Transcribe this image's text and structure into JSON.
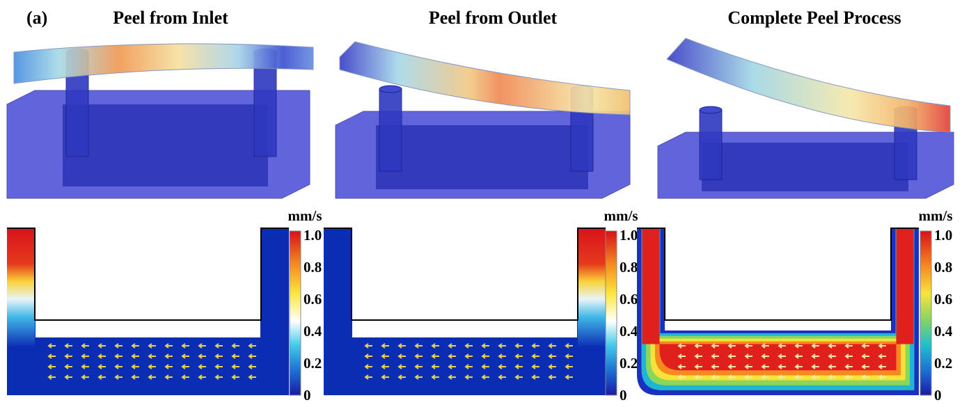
{
  "label": "(a)",
  "panels": [
    {
      "title": "Peel from Inlet",
      "colorbar": {
        "unit": "mm/s",
        "ticks": [
          "1.0",
          "0.8",
          "0.6",
          "0.4",
          "0.2",
          "0"
        ]
      }
    },
    {
      "title": "Peel from Outlet",
      "colorbar": {
        "unit": "mm/s",
        "ticks": [
          "1.0",
          "0.8",
          "0.6",
          "0.4",
          "0.2",
          "0"
        ]
      }
    },
    {
      "title": "Complete Peel Process",
      "colorbar": {
        "unit": "mm/s",
        "ticks": [
          "1.0",
          "0.8",
          "0.6",
          "0.4",
          "0.2",
          "0"
        ]
      }
    }
  ]
}
